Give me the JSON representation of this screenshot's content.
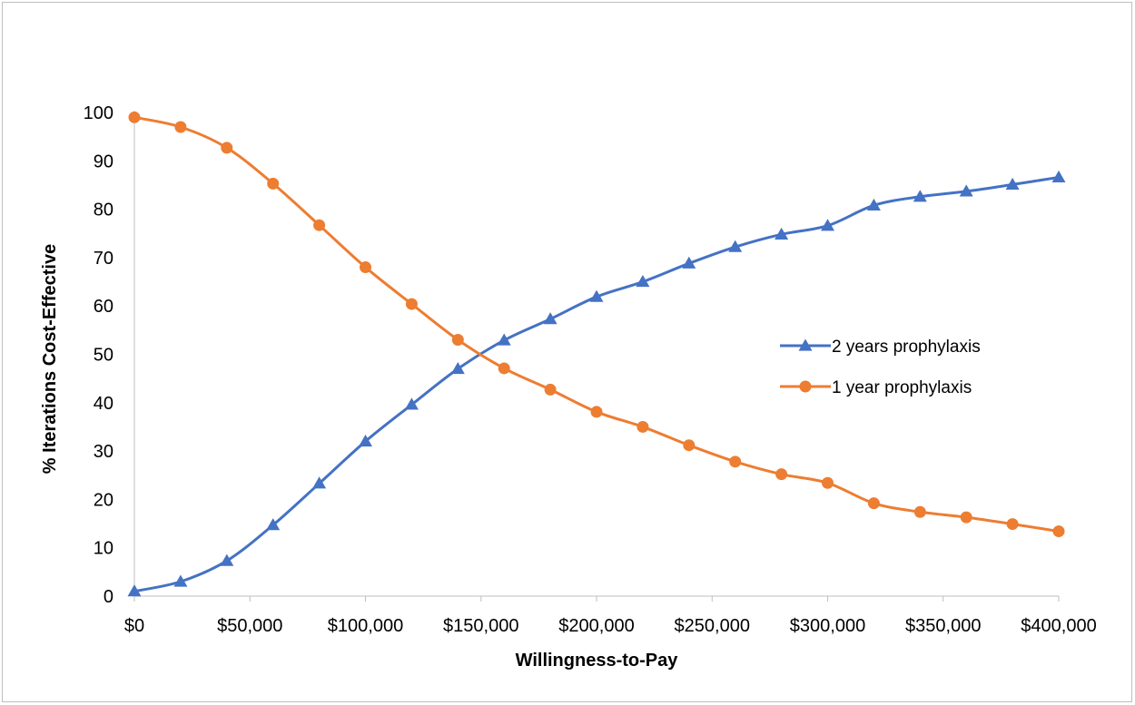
{
  "chart_data": {
    "type": "line",
    "title": "",
    "xlabel": "Willingness-to-Pay",
    "ylabel": "% Iterations Cost-Effective",
    "x": [
      0,
      20000,
      40000,
      60000,
      80000,
      100000,
      120000,
      140000,
      160000,
      180000,
      200000,
      220000,
      240000,
      260000,
      280000,
      300000,
      320000,
      340000,
      360000,
      380000,
      400000
    ],
    "xlim": [
      0,
      400000
    ],
    "ylim": [
      0,
      100
    ],
    "x_ticks": [
      0,
      50000,
      100000,
      150000,
      200000,
      250000,
      300000,
      350000,
      400000
    ],
    "x_tick_labels": [
      "$0",
      "$50,000",
      "$100,000",
      "$150,000",
      "$200,000",
      "$250,000",
      "$300,000",
      "$350,000",
      "$400,000"
    ],
    "y_ticks": [
      0,
      10,
      20,
      30,
      40,
      50,
      60,
      70,
      80,
      90,
      100
    ],
    "y_tick_labels": [
      "0",
      "10",
      "20",
      "30",
      "40",
      "50",
      "60",
      "70",
      "80",
      "90",
      "100"
    ],
    "grid": false,
    "legend_position": "right",
    "series": [
      {
        "name": "2 years prophylaxis",
        "color": "#4472c4",
        "marker": "triangle",
        "values": [
          1.0,
          3.0,
          7.3,
          14.7,
          23.3,
          32.0,
          39.6,
          47.0,
          52.9,
          57.3,
          61.9,
          65.0,
          68.8,
          72.2,
          74.8,
          76.6,
          80.8,
          82.6,
          83.7,
          85.1,
          86.6
        ]
      },
      {
        "name": "1 year prophylaxis",
        "color": "#ed7d31",
        "marker": "circle",
        "values": [
          99.0,
          97.0,
          92.7,
          85.3,
          76.7,
          68.0,
          60.4,
          53.0,
          47.1,
          42.7,
          38.1,
          35.0,
          31.2,
          27.8,
          25.2,
          23.4,
          19.2,
          17.4,
          16.3,
          14.9,
          13.4
        ]
      }
    ]
  }
}
